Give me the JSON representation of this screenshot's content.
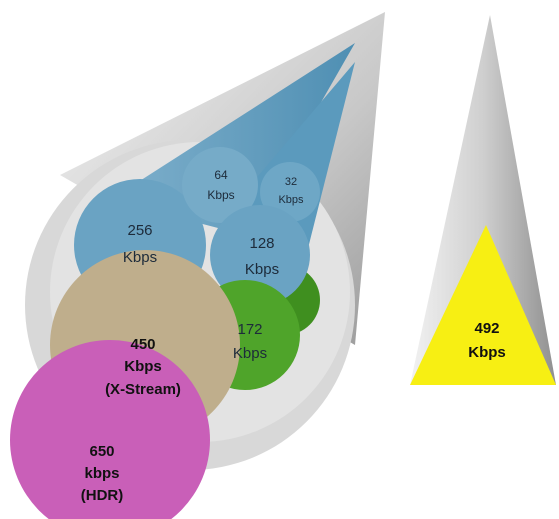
{
  "bubbles": [
    {
      "lines": [
        "256",
        "Kbps"
      ]
    },
    {
      "lines": [
        "64",
        "Kbps"
      ]
    },
    {
      "lines": [
        "32",
        "Kbps"
      ]
    },
    {
      "lines": [
        "128",
        "Kbps"
      ]
    },
    {
      "lines": [
        "172",
        "Kbps"
      ]
    },
    {
      "lines": [
        "450",
        "Kbps",
        "(X-Stream)"
      ]
    },
    {
      "lines": [
        "650",
        "kbps",
        "(HDR)"
      ]
    }
  ],
  "triangle": {
    "lines": [
      "492",
      "Kbps"
    ]
  }
}
